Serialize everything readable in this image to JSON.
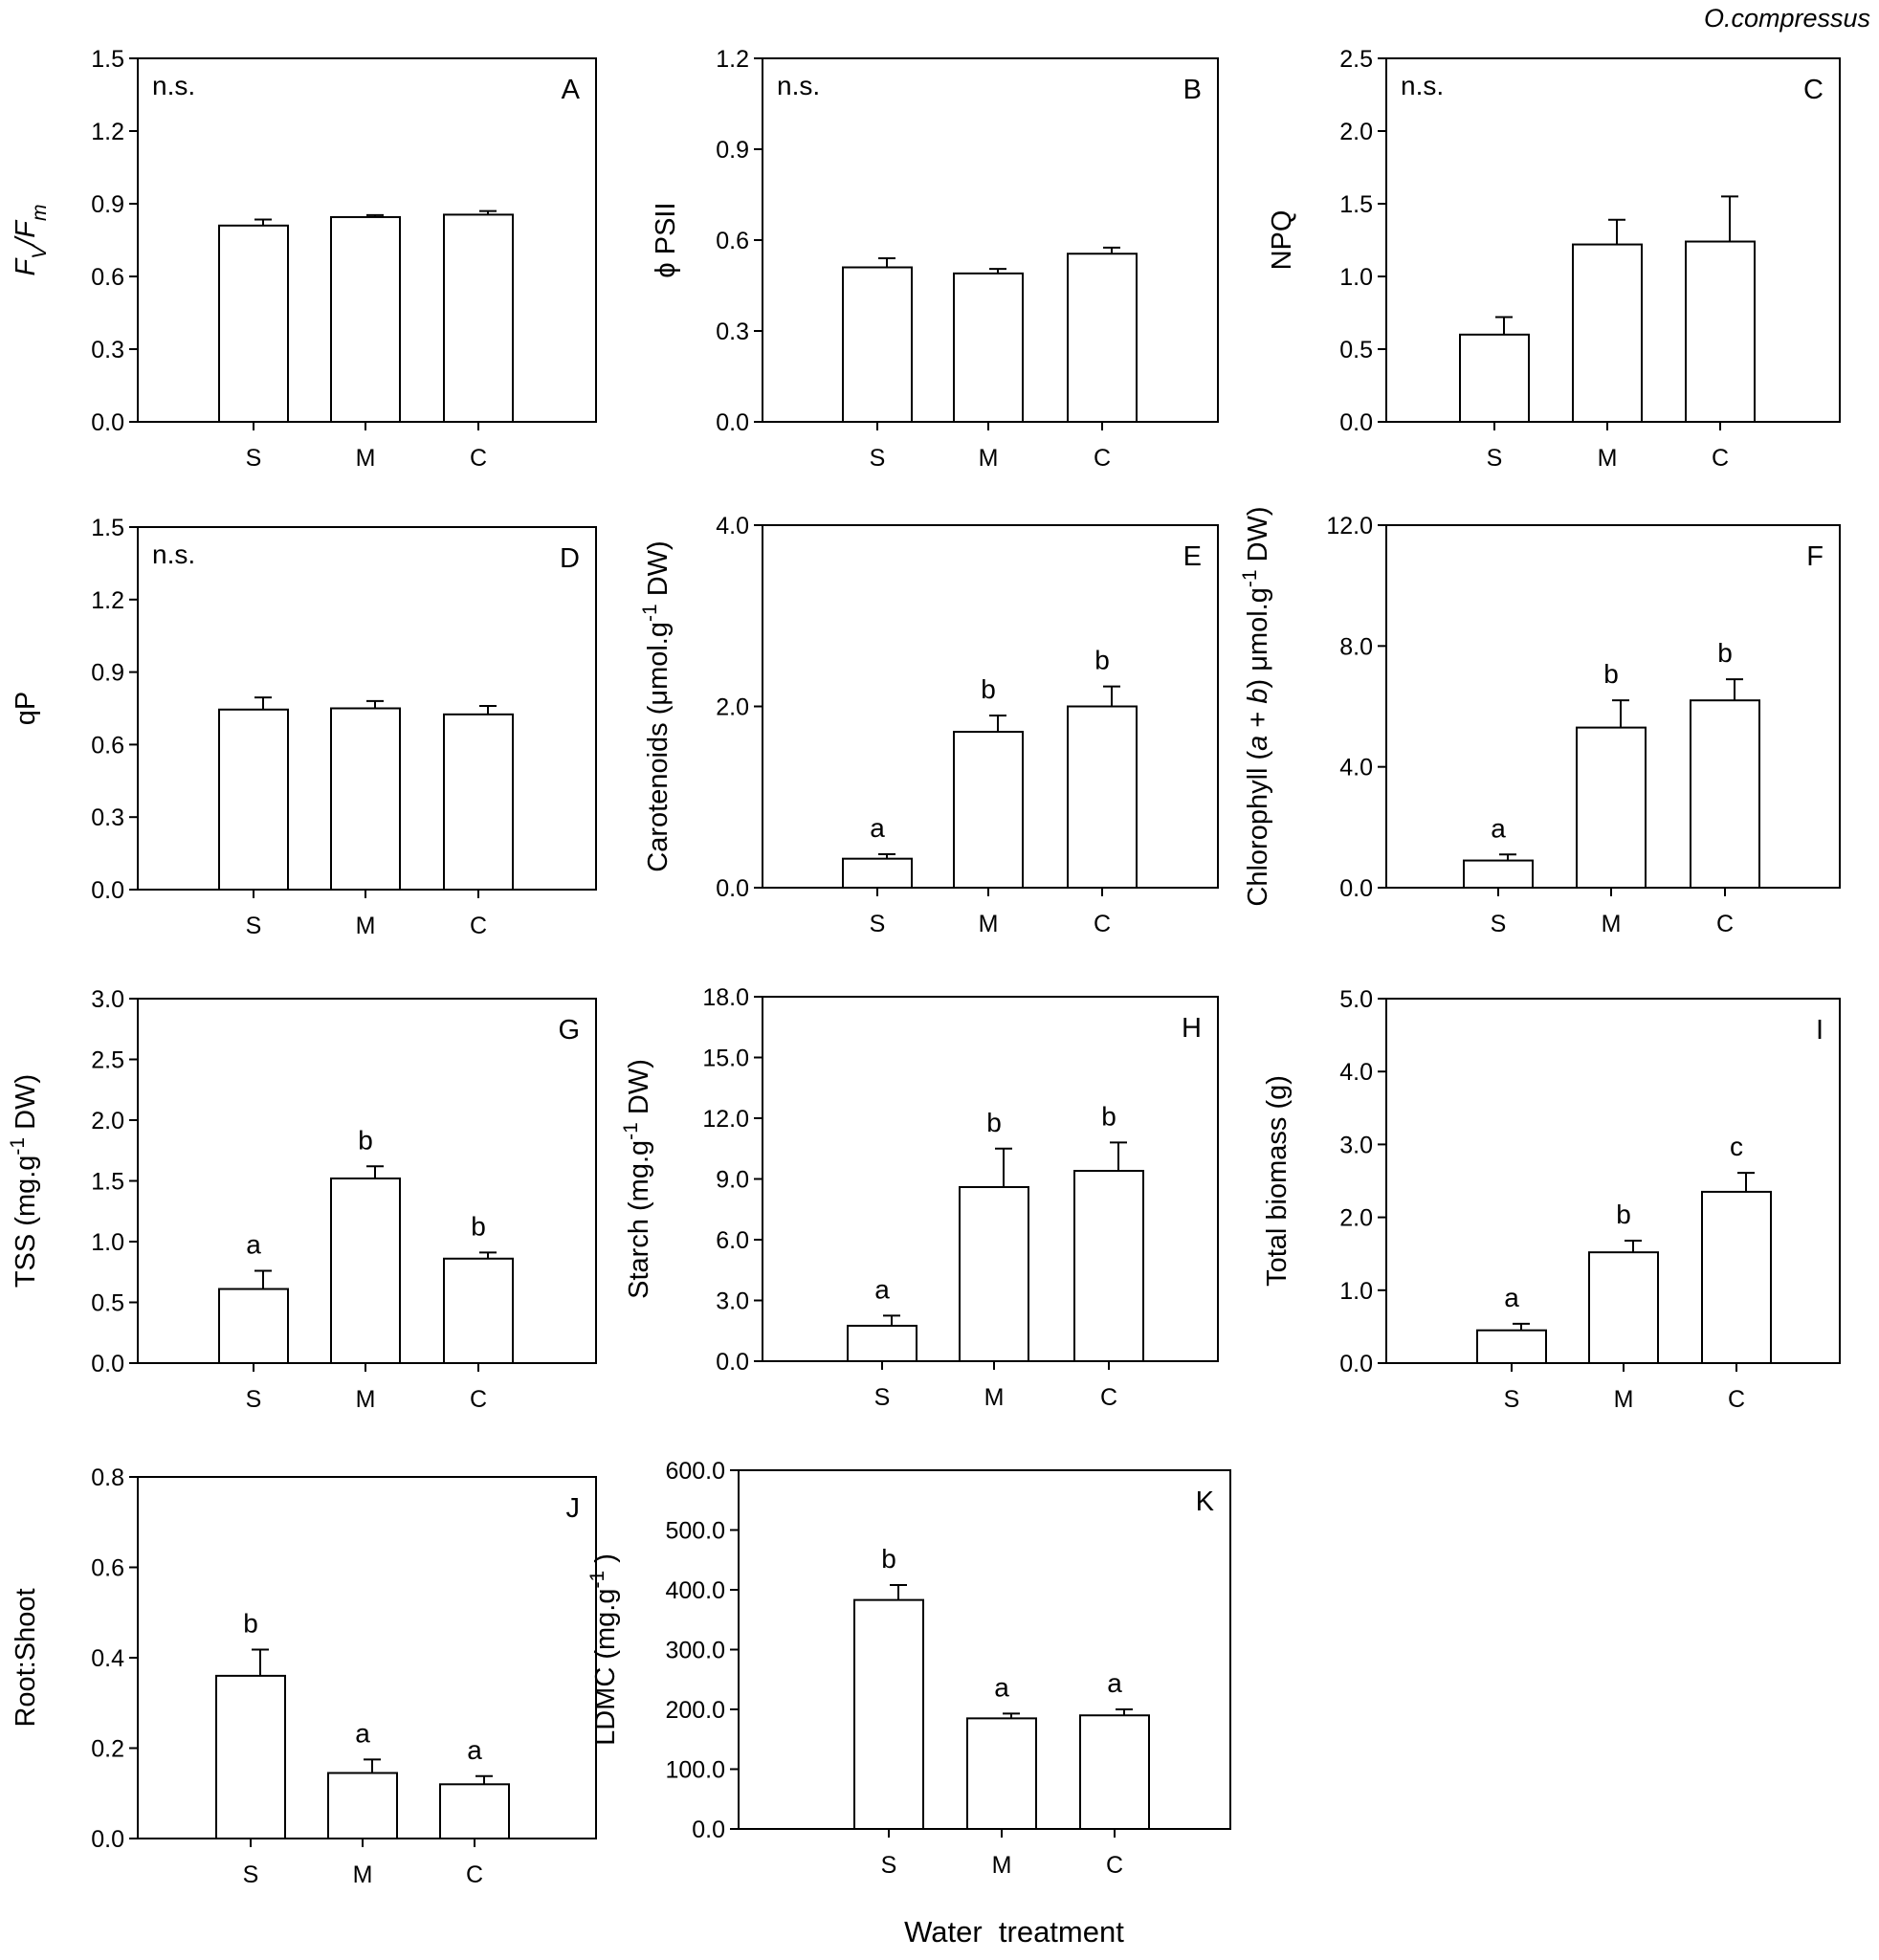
{
  "figure": {
    "species": "O.compressus",
    "xlabel": "Water  treatment"
  },
  "colors": {
    "axis": "#000000",
    "bar_fill": "#ffffff",
    "bar_stroke": "#000000",
    "background": "#ffffff"
  },
  "chart_data": [
    {
      "id": "A",
      "type": "bar",
      "panel_label": "A",
      "ylabel": "FV/Fm",
      "ylabel_parts": [
        {
          "t": "F",
          "i": true
        },
        {
          "t": "V",
          "i": true,
          "sub": true
        },
        {
          "t": "/",
          "i": true
        },
        {
          "t": "F",
          "i": true
        },
        {
          "t": "m",
          "i": true,
          "sub": true
        }
      ],
      "ylim": [
        0,
        1.5
      ],
      "yticks": [
        0.0,
        0.3,
        0.6,
        0.9,
        1.2,
        1.5
      ],
      "ytick_labels": [
        "0.0",
        "0.3",
        "0.6",
        "0.9",
        "1.2",
        "1.5"
      ],
      "categories": [
        "S",
        "M",
        "C"
      ],
      "values": [
        0.81,
        0.845,
        0.855
      ],
      "errors": [
        0.025,
        0.008,
        0.015
      ],
      "significance": "n.s.",
      "letters": null
    },
    {
      "id": "B",
      "type": "bar",
      "panel_label": "B",
      "ylabel": "ϕ PSII",
      "ylabel_parts": [
        {
          "t": "ϕ PSII"
        }
      ],
      "ylim": [
        0,
        1.2
      ],
      "yticks": [
        0.0,
        0.3,
        0.6,
        0.9,
        1.2
      ],
      "ytick_labels": [
        "0.0",
        "0.3",
        "0.6",
        "0.9",
        "1.2"
      ],
      "categories": [
        "S",
        "M",
        "C"
      ],
      "values": [
        0.51,
        0.49,
        0.555
      ],
      "errors": [
        0.03,
        0.015,
        0.02
      ],
      "significance": "n.s.",
      "letters": null
    },
    {
      "id": "C",
      "type": "bar",
      "panel_label": "C",
      "ylabel": "NPQ",
      "ylabel_parts": [
        {
          "t": "NPQ"
        }
      ],
      "ylim": [
        0,
        2.5
      ],
      "yticks": [
        0.0,
        0.5,
        1.0,
        1.5,
        2.0,
        2.5
      ],
      "ytick_labels": [
        "0.0",
        "0.5",
        "1.0",
        "1.5",
        "2.0",
        "2.5"
      ],
      "categories": [
        "S",
        "M",
        "C"
      ],
      "values": [
        0.6,
        1.22,
        1.24
      ],
      "errors": [
        0.12,
        0.17,
        0.31
      ],
      "significance": "n.s.",
      "letters": null
    },
    {
      "id": "D",
      "type": "bar",
      "panel_label": "D",
      "ylabel": "qP",
      "ylabel_parts": [
        {
          "t": "qP"
        }
      ],
      "ylim": [
        0,
        1.5
      ],
      "yticks": [
        0.0,
        0.3,
        0.6,
        0.9,
        1.2,
        1.5
      ],
      "ytick_labels": [
        "0.0",
        "0.3",
        "0.6",
        "0.9",
        "1.2",
        "1.5"
      ],
      "categories": [
        "S",
        "M",
        "C"
      ],
      "values": [
        0.745,
        0.75,
        0.725
      ],
      "errors": [
        0.05,
        0.03,
        0.035
      ],
      "significance": "n.s.",
      "letters": null
    },
    {
      "id": "E",
      "type": "bar",
      "panel_label": "E",
      "ylabel": "Carotenoids (μmol.g-1 DW)",
      "ylabel_parts": [
        {
          "t": "Carotenoids (μmol.g"
        },
        {
          "t": "-1",
          "sup": true
        },
        {
          "t": " DW)"
        }
      ],
      "ylim": [
        0,
        4.0
      ],
      "yticks": [
        0.0,
        2.0,
        4.0
      ],
      "ytick_labels": [
        "0.0",
        "2.0",
        "4.0"
      ],
      "categories": [
        "S",
        "M",
        "C"
      ],
      "values": [
        0.32,
        1.72,
        2.0
      ],
      "errors": [
        0.05,
        0.18,
        0.22
      ],
      "significance": null,
      "letters": [
        "a",
        "b",
        "b"
      ]
    },
    {
      "id": "F",
      "type": "bar",
      "panel_label": "F",
      "ylabel": "Chlorophyll (a + b) μmol.g-1 DW)",
      "ylabel_parts": [
        {
          "t": "Chlorophyll ("
        },
        {
          "t": "a",
          "i": true
        },
        {
          "t": " + "
        },
        {
          "t": "b",
          "i": true
        },
        {
          "t": ") μmol.g"
        },
        {
          "t": "-1",
          "sup": true
        },
        {
          "t": " DW)"
        }
      ],
      "ylim": [
        0,
        12.0
      ],
      "yticks": [
        0.0,
        4.0,
        8.0,
        12.0
      ],
      "ytick_labels": [
        "0.0",
        "4.0",
        "8.0",
        "12.0"
      ],
      "categories": [
        "S",
        "M",
        "C"
      ],
      "values": [
        0.9,
        5.3,
        6.2
      ],
      "errors": [
        0.2,
        0.9,
        0.7
      ],
      "significance": null,
      "letters": [
        "a",
        "b",
        "b"
      ]
    },
    {
      "id": "G",
      "type": "bar",
      "panel_label": "G",
      "ylabel": "TSS (mg.g-1 DW)",
      "ylabel_parts": [
        {
          "t": "TSS (mg.g"
        },
        {
          "t": "-1",
          "sup": true
        },
        {
          "t": " DW)"
        }
      ],
      "ylim": [
        0,
        3.0
      ],
      "yticks": [
        0.0,
        0.5,
        1.0,
        1.5,
        2.0,
        2.5,
        3.0
      ],
      "ytick_labels": [
        "0.0",
        "0.5",
        "1.0",
        "1.5",
        "2.0",
        "2.5",
        "3.0"
      ],
      "categories": [
        "S",
        "M",
        "C"
      ],
      "values": [
        0.61,
        1.52,
        0.86
      ],
      "errors": [
        0.15,
        0.1,
        0.05
      ],
      "significance": null,
      "letters": [
        "a",
        "b",
        "b"
      ]
    },
    {
      "id": "H",
      "type": "bar",
      "panel_label": "H",
      "ylabel": "Starch (mg.g-1 DW)",
      "ylabel_parts": [
        {
          "t": "Starch (mg.g"
        },
        {
          "t": "-1",
          "sup": true
        },
        {
          "t": " DW)"
        }
      ],
      "ylim": [
        0,
        18.0
      ],
      "yticks": [
        0.0,
        3.0,
        6.0,
        9.0,
        12.0,
        15.0,
        18.0
      ],
      "ytick_labels": [
        "0.0",
        "3.0",
        "6.0",
        "9.0",
        "12.0",
        "15.0",
        "18.0"
      ],
      "categories": [
        "S",
        "M",
        "C"
      ],
      "values": [
        1.75,
        8.6,
        9.4
      ],
      "errors": [
        0.5,
        1.9,
        1.4
      ],
      "significance": null,
      "letters": [
        "a",
        "b",
        "b"
      ]
    },
    {
      "id": "I",
      "type": "bar",
      "panel_label": "I",
      "ylabel": "Total biomass (g)",
      "ylabel_parts": [
        {
          "t": "Total biomass (g)"
        }
      ],
      "ylim": [
        0,
        5.0
      ],
      "yticks": [
        0.0,
        1.0,
        2.0,
        3.0,
        4.0,
        5.0
      ],
      "ytick_labels": [
        "0.0",
        "1.0",
        "2.0",
        "3.0",
        "4.0",
        "5.0"
      ],
      "categories": [
        "S",
        "M",
        "C"
      ],
      "values": [
        0.45,
        1.52,
        2.35
      ],
      "errors": [
        0.09,
        0.16,
        0.26
      ],
      "significance": null,
      "letters": [
        "a",
        "b",
        "c"
      ]
    },
    {
      "id": "J",
      "type": "bar",
      "panel_label": "J",
      "ylabel": "Root:Shoot",
      "ylabel_parts": [
        {
          "t": "Root:Shoot"
        }
      ],
      "ylim": [
        0,
        0.8
      ],
      "yticks": [
        0.0,
        0.2,
        0.4,
        0.6,
        0.8
      ],
      "ytick_labels": [
        "0.0",
        "0.2",
        "0.4",
        "0.6",
        "0.8"
      ],
      "categories": [
        "S",
        "M",
        "C"
      ],
      "values": [
        0.36,
        0.145,
        0.12
      ],
      "errors": [
        0.058,
        0.03,
        0.018
      ],
      "significance": null,
      "letters": [
        "b",
        "a",
        "a"
      ]
    },
    {
      "id": "K",
      "type": "bar",
      "panel_label": "K",
      "ylabel": "LDMC (mg.g-1 )",
      "ylabel_parts": [
        {
          "t": "LDMC (mg.g"
        },
        {
          "t": "-1",
          "sup": true
        },
        {
          "t": " )"
        }
      ],
      "ylim": [
        0,
        600.0
      ],
      "yticks": [
        0.0,
        100.0,
        200.0,
        300.0,
        400.0,
        500.0,
        600.0
      ],
      "ytick_labels": [
        "0.0",
        "100.0",
        "200.0",
        "300.0",
        "400.0",
        "500.0",
        "600.0"
      ],
      "categories": [
        "S",
        "M",
        "C"
      ],
      "values": [
        383,
        185,
        190
      ],
      "errors": [
        25,
        8,
        10
      ],
      "significance": null,
      "letters": [
        "b",
        "a",
        "a"
      ]
    }
  ]
}
